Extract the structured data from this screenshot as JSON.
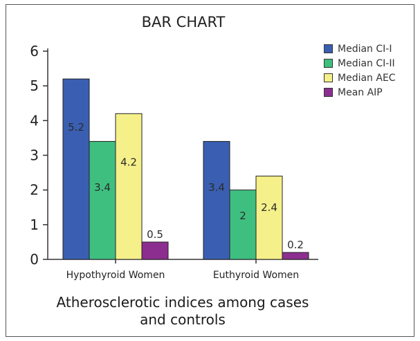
{
  "chart_data": {
    "type": "bar",
    "title": "BAR CHART",
    "caption_lines": [
      "Atherosclerotic indices among cases",
      "and controls"
    ],
    "categories": [
      "Hypothyroid Women",
      "Euthyroid Women"
    ],
    "series": [
      {
        "name": "Median CI-I",
        "color": "#3a5fb2",
        "values": [
          5.2,
          3.4
        ]
      },
      {
        "name": "Median CI-II",
        "color": "#3ebf80",
        "values": [
          3.4,
          2
        ]
      },
      {
        "name": "Median AEC",
        "color": "#f5f08a",
        "values": [
          4.2,
          2.4
        ]
      },
      {
        "name": "Mean AIP",
        "color": "#8c2e8f",
        "values": [
          0.5,
          0.2
        ]
      }
    ],
    "data_labels": [
      [
        "5.2",
        "3.4"
      ],
      [
        "3.4",
        "2"
      ],
      [
        "4.2",
        "2.4"
      ],
      [
        "0.5",
        "0.2"
      ]
    ],
    "y_ticks": [
      "0",
      "1",
      "2",
      "3",
      "4",
      "5",
      "6"
    ],
    "ylim": [
      0,
      6
    ],
    "grid": false,
    "legend_position": "right"
  }
}
